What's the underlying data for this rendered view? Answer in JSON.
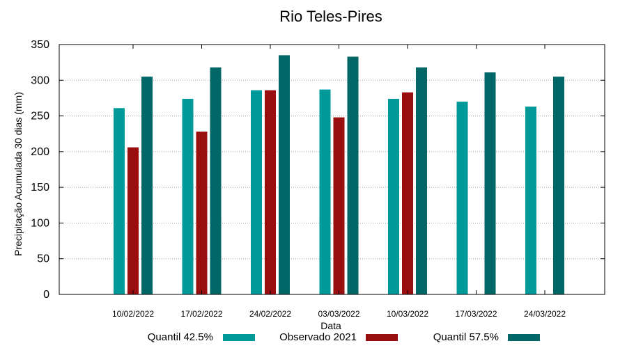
{
  "chart_data": {
    "type": "bar",
    "title": "Rio Teles-Pires",
    "xlabel": "Data",
    "ylabel": "Precipitação Acumulada 30 dias (mm)",
    "ylim": [
      0,
      350
    ],
    "yticks": [
      0,
      50,
      100,
      150,
      200,
      250,
      300,
      350
    ],
    "grid": true,
    "legend_position": "bottom",
    "categories": [
      "10/02/2022",
      "17/02/2022",
      "24/02/2022",
      "03/03/2022",
      "10/03/2022",
      "17/03/2022",
      "24/03/2022"
    ],
    "series": [
      {
        "name": "Quantil 42.5%",
        "color": "#009999",
        "values": [
          261,
          274,
          286,
          287,
          274,
          270,
          263
        ]
      },
      {
        "name": "Observado 2021",
        "color": "#990f0f",
        "values": [
          206,
          228,
          286,
          248,
          283,
          null,
          null
        ]
      },
      {
        "name": "Quantil 57.5%",
        "color": "#006666",
        "values": [
          305,
          318,
          335,
          333,
          318,
          311,
          305
        ]
      }
    ]
  }
}
